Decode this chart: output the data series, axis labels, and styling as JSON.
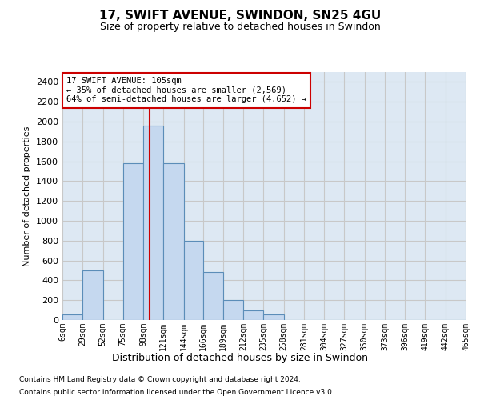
{
  "title1": "17, SWIFT AVENUE, SWINDON, SN25 4GU",
  "title2": "Size of property relative to detached houses in Swindon",
  "xlabel": "Distribution of detached houses by size in Swindon",
  "ylabel": "Number of detached properties",
  "footer1": "Contains HM Land Registry data © Crown copyright and database right 2024.",
  "footer2": "Contains public sector information licensed under the Open Government Licence v3.0.",
  "annotation_title": "17 SWIFT AVENUE: 105sqm",
  "annotation_line1": "← 35% of detached houses are smaller (2,569)",
  "annotation_line2": "64% of semi-detached houses are larger (4,652) →",
  "property_sqm": 105,
  "bar_color": "#c5d8ef",
  "bar_edge_color": "#5b8db8",
  "vline_color": "#cc0000",
  "grid_color": "#c8c8c8",
  "bg_color": "#dde8f3",
  "annotation_box_facecolor": "#ffffff",
  "annotation_border_color": "#cc0000",
  "categories": [
    "6sqm",
    "29sqm",
    "52sqm",
    "75sqm",
    "98sqm",
    "121sqm",
    "144sqm",
    "166sqm",
    "189sqm",
    "212sqm",
    "235sqm",
    "258sqm",
    "281sqm",
    "304sqm",
    "327sqm",
    "350sqm",
    "373sqm",
    "396sqm",
    "419sqm",
    "442sqm",
    "465sqm"
  ],
  "bin_left_edges": [
    6,
    29,
    52,
    75,
    98,
    121,
    144,
    166,
    189,
    212,
    235,
    258,
    281,
    304,
    327,
    350,
    373,
    396,
    419,
    442,
    465
  ],
  "bar_heights": [
    60,
    500,
    0,
    1580,
    1960,
    1580,
    800,
    480,
    200,
    100,
    60,
    0,
    0,
    0,
    0,
    0,
    0,
    0,
    0,
    0
  ],
  "ylim": [
    0,
    2500
  ],
  "ytick_step": 200,
  "xlim_left": 6,
  "xlim_right": 465
}
